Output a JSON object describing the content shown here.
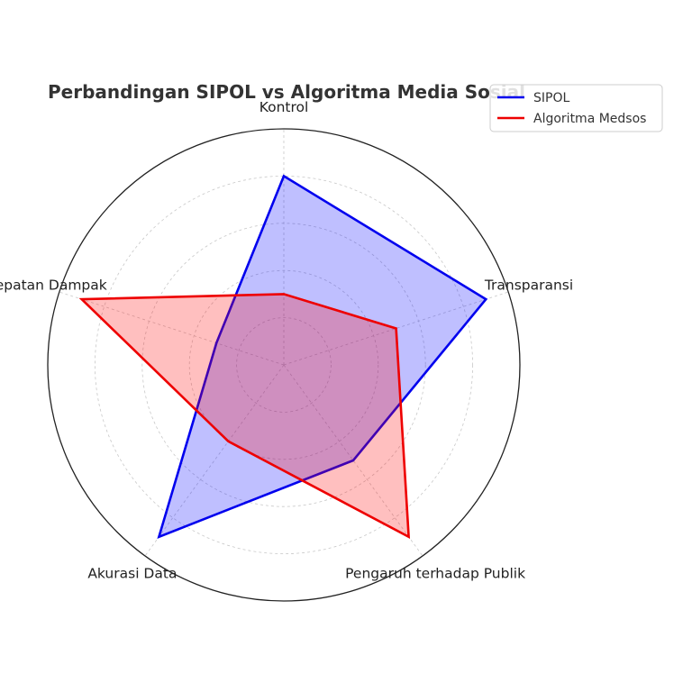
{
  "chart_data": {
    "type": "radar",
    "title": "Perbandingan SIPOL vs Algoritma Media Sosial",
    "categories": [
      "Transparansi",
      "Kontrol",
      "Kecepatan Dampak",
      "Akurasi Data",
      "Pengaruh terhadap Publik"
    ],
    "rmax": 10,
    "grid": true,
    "legend_position": "top-right",
    "series": [
      {
        "name": "SIPOL",
        "values": [
          9,
          8,
          3,
          9,
          5
        ],
        "line_color": "#0000ee",
        "fill_color": "#0000ff",
        "fill_opacity": 0.25
      },
      {
        "name": "Algoritma Medsos",
        "values": [
          5,
          3,
          9,
          4,
          9
        ],
        "line_color": "#ee0000",
        "fill_color": "#ff0000",
        "fill_opacity": 0.25
      }
    ]
  }
}
